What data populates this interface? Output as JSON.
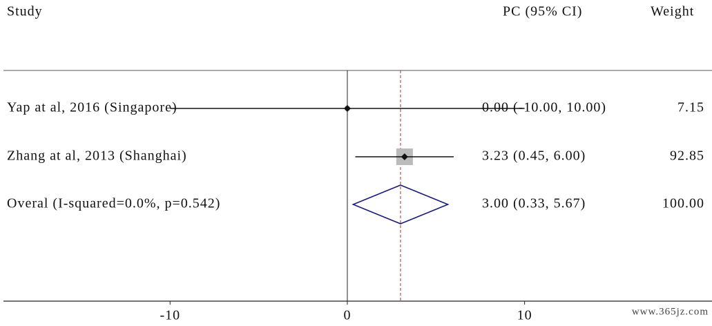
{
  "chart_data": {
    "type": "forest",
    "headers": [
      "Study",
      "PC (95% CI)",
      "Weight"
    ],
    "studies": [
      {
        "name": "Yap at al, 2016 (Singapore)",
        "estimate": 0,
        "lower": -10,
        "upper": 10,
        "ci_label": "0.00 (-10.00, 10.00)",
        "weight": 7.15
      },
      {
        "name": "Zhang at al, 2013 (Shanghai)",
        "estimate": 3.23,
        "lower": 0.45,
        "upper": 6,
        "ci_label": "3.23 (0.45, 6.00)",
        "weight": 92.85
      }
    ],
    "overall": {
      "name": "Overal (I-squared=0.0%, p=0.542)",
      "estimate": 3,
      "lower": 0.33,
      "upper": 5.67,
      "ci_label": "3.00 (0.33, 5.67)",
      "weight": 100,
      "weight_label": "100.00"
    },
    "null_line": 0,
    "xlim": [
      -19.4,
      20.3
    ],
    "xticks": [
      -10,
      0,
      10
    ],
    "marker_color": "#bbbbbb",
    "diamond_color": "#1a1a7a",
    "overall_line_color": "#a33",
    "watermark": "www.365jz.com"
  }
}
